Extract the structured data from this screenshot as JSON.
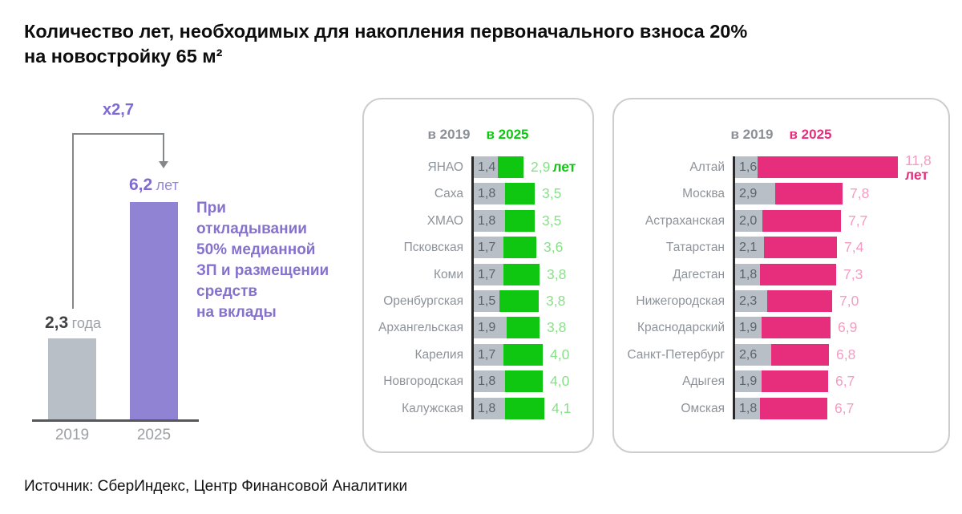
{
  "title": {
    "line1": "Количество лет, необходимых для накопления первоначального взноса 20%",
    "line2": "на новостройку 65 м²"
  },
  "source": "Источник: СберИндекс, Центр Финансовой Аналитики",
  "colors": {
    "purple_bar": "#9183d4",
    "purple_text": "#8672ce",
    "green": "#0fc610",
    "green_light": "#8adf8a",
    "pink": "#e62e7b",
    "pink_light": "#f49cc2",
    "gray_bar": "#b9bfc6",
    "gray_text": "#8d939a"
  },
  "chart_data": [
    {
      "id": "national-average",
      "type": "bar",
      "categories": [
        "2019",
        "2025"
      ],
      "values": [
        2.3,
        6.2
      ],
      "value_labels": [
        {
          "num": "2,3",
          "unit": "года"
        },
        {
          "num": "6,2",
          "unit": "лет"
        }
      ],
      "multiplier_label": "x2,7",
      "annotation": "При\nоткладывании\n50% медианной\nЗП и размещении\nсредств\nна вклады",
      "ylim": [
        0,
        6.5
      ],
      "grid": false
    },
    {
      "id": "regions-fastest",
      "type": "bar",
      "orientation": "horizontal",
      "legend": [
        "в 2019",
        "в 2025"
      ],
      "unit": "лет",
      "accent_color": "#0fc610",
      "categories": [
        "ЯНАО",
        "Саха",
        "ХМАО",
        "Псковская",
        "Коми",
        "Оренбургская",
        "Архангельская",
        "Карелия",
        "Новгородская",
        "Калужская"
      ],
      "series": [
        {
          "name": "в 2019",
          "values": [
            1.4,
            1.8,
            1.8,
            1.7,
            1.7,
            1.5,
            1.9,
            1.7,
            1.8,
            1.8
          ]
        },
        {
          "name": "в 2025",
          "values": [
            2.9,
            3.5,
            3.5,
            3.6,
            3.8,
            3.8,
            3.8,
            4.0,
            4.0,
            4.1
          ]
        }
      ],
      "xlim": [
        0,
        4.5
      ],
      "grid": false,
      "legend_position": "top"
    },
    {
      "id": "regions-slowest",
      "type": "bar",
      "orientation": "horizontal",
      "legend": [
        "в 2019",
        "в 2025"
      ],
      "unit": "лет",
      "accent_color": "#e62e7b",
      "categories": [
        "Алтай",
        "Москва",
        "Астраханская",
        "Татарстан",
        "Дагестан",
        "Нижегородская",
        "Краснодарский",
        "Санкт-Петербург",
        "Адыгея",
        "Омская"
      ],
      "series": [
        {
          "name": "в 2019",
          "values": [
            1.6,
            2.9,
            2.0,
            2.1,
            1.8,
            2.3,
            1.9,
            2.6,
            1.9,
            1.8
          ]
        },
        {
          "name": "в 2025",
          "values": [
            11.8,
            7.8,
            7.7,
            7.4,
            7.3,
            7.0,
            6.9,
            6.8,
            6.7,
            6.7
          ]
        }
      ],
      "xlim": [
        0,
        12.5
      ],
      "grid": false,
      "legend_position": "top"
    }
  ]
}
